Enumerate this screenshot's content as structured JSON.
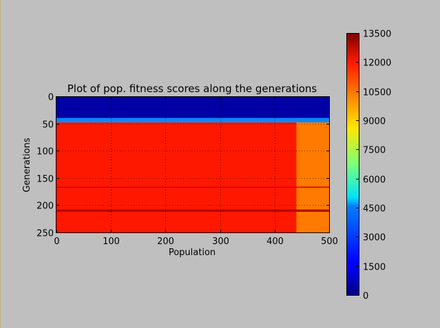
{
  "chart_data": {
    "type": "heatmap",
    "title": "Plot of pop. fitness scores along the generations",
    "xlabel": "Population",
    "ylabel": "Generations",
    "xlim": [
      0,
      500
    ],
    "ylim": [
      250,
      0
    ],
    "x_ticks": [
      "0",
      "100",
      "200",
      "300",
      "400",
      "500"
    ],
    "y_ticks": [
      "0",
      "50",
      "100",
      "150",
      "200",
      "250"
    ],
    "grid": true,
    "colormap": "jet",
    "colorbar": {
      "range": [
        0,
        13500
      ],
      "ticks": [
        "0",
        "1500",
        "3000",
        "4500",
        "6000",
        "7500",
        "9000",
        "10500",
        "12000",
        "13500"
      ]
    },
    "regions": [
      {
        "generations": [
          0,
          40
        ],
        "population": [
          0,
          500
        ],
        "value": 500
      },
      {
        "generations": [
          40,
          48
        ],
        "population": [
          0,
          500
        ],
        "value": 3500
      },
      {
        "generations": [
          48,
          250
        ],
        "population": [
          0,
          440
        ],
        "value": 11500
      },
      {
        "generations": [
          48,
          250
        ],
        "population": [
          440,
          500
        ],
        "value": 10200
      },
      {
        "generations": [
          166,
          168
        ],
        "population": [
          0,
          500
        ],
        "value": 12300
      },
      {
        "generations": [
          208,
          212
        ],
        "population": [
          0,
          500
        ],
        "value": 12800
      }
    ]
  }
}
